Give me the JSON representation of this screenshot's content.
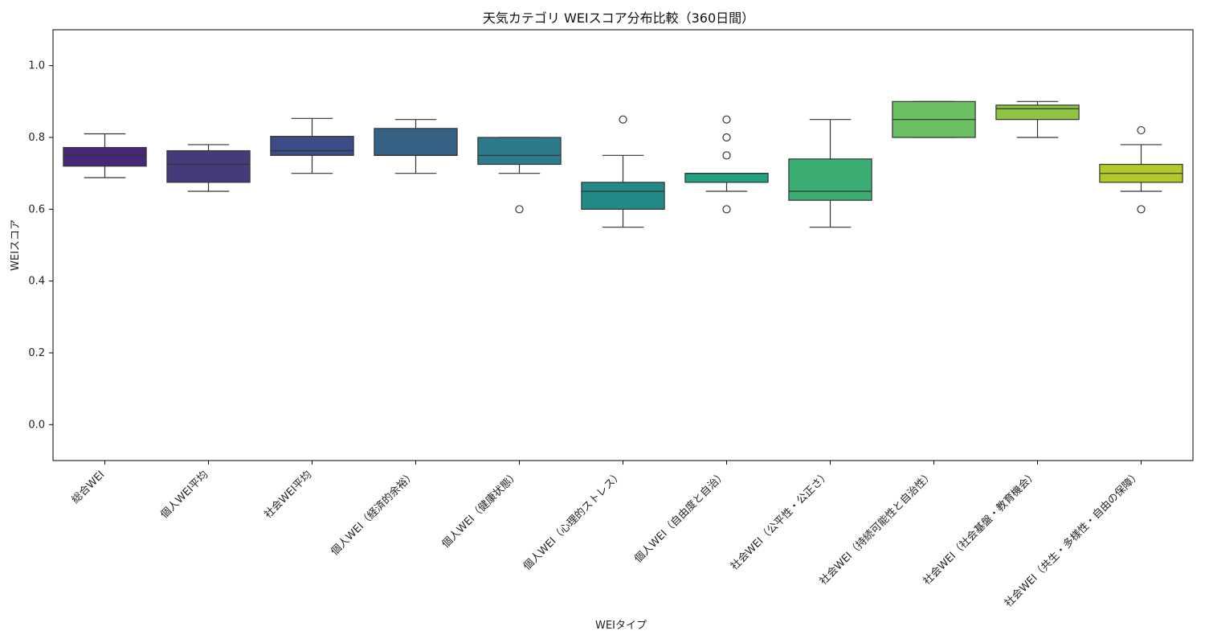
{
  "chart_data": {
    "type": "box",
    "title": "天気カテゴリ WEIスコア分布比較（360日間）",
    "xlabel": "WEIタイプ",
    "ylabel": "WEIスコア",
    "ylim": [
      -0.1,
      1.1
    ],
    "yticks": [
      "0.0",
      "0.2",
      "0.4",
      "0.6",
      "0.8",
      "1.0"
    ],
    "grid": false,
    "categories": [
      "総合WEI",
      "個人WEI平均",
      "社会WEI平均",
      "個人WEI（経済的余裕）",
      "個人WEI（健康状態）",
      "個人WEI（心理的ストレス）",
      "個人WEI（自由度と自治）",
      "社会WEI（公平性・公正さ）",
      "社会WEI（持続可能性と自治性）",
      "社会WEI（社会基盤・教育機会）",
      "社会WEI（共生・多様性・自由の保障）"
    ],
    "boxes": [
      {
        "whislo": 0.688,
        "q1": 0.72,
        "med": 0.75,
        "q3": 0.772,
        "whishi": 0.81,
        "fliers": [],
        "color": "#472878"
      },
      {
        "whislo": 0.65,
        "q1": 0.675,
        "med": 0.725,
        "q3": 0.763,
        "whishi": 0.78,
        "fliers": [],
        "color": "#463b7a"
      },
      {
        "whislo": 0.7,
        "q1": 0.75,
        "med": 0.763,
        "q3": 0.803,
        "whishi": 0.853,
        "fliers": [],
        "color": "#3b4c87"
      },
      {
        "whislo": 0.7,
        "q1": 0.75,
        "med": 0.75,
        "q3": 0.825,
        "whishi": 0.85,
        "fliers": [],
        "color": "#356184"
      },
      {
        "whislo": 0.7,
        "q1": 0.725,
        "med": 0.75,
        "q3": 0.8,
        "whishi": 0.8,
        "fliers": [
          0.6
        ],
        "color": "#2c7a8b"
      },
      {
        "whislo": 0.55,
        "q1": 0.6,
        "med": 0.65,
        "q3": 0.675,
        "whishi": 0.75,
        "fliers": [
          0.85
        ],
        "color": "#238986"
      },
      {
        "whislo": 0.65,
        "q1": 0.675,
        "med": 0.7,
        "q3": 0.7,
        "whishi": 0.7,
        "fliers": [
          0.6,
          0.75,
          0.8,
          0.85
        ],
        "color": "#21a181"
      },
      {
        "whislo": 0.55,
        "q1": 0.625,
        "med": 0.65,
        "q3": 0.74,
        "whishi": 0.85,
        "fliers": [],
        "color": "#3bad73"
      },
      {
        "whislo": 0.8,
        "q1": 0.8,
        "med": 0.85,
        "q3": 0.9,
        "whishi": 0.9,
        "fliers": [],
        "color": "#6abf63"
      },
      {
        "whislo": 0.8,
        "q1": 0.85,
        "med": 0.88,
        "q3": 0.89,
        "whishi": 0.9,
        "fliers": [],
        "color": "#8ec444"
      },
      {
        "whislo": 0.65,
        "q1": 0.675,
        "med": 0.7,
        "q3": 0.725,
        "whishi": 0.78,
        "fliers": [
          0.6,
          0.82
        ],
        "color": "#b3c928"
      }
    ]
  }
}
